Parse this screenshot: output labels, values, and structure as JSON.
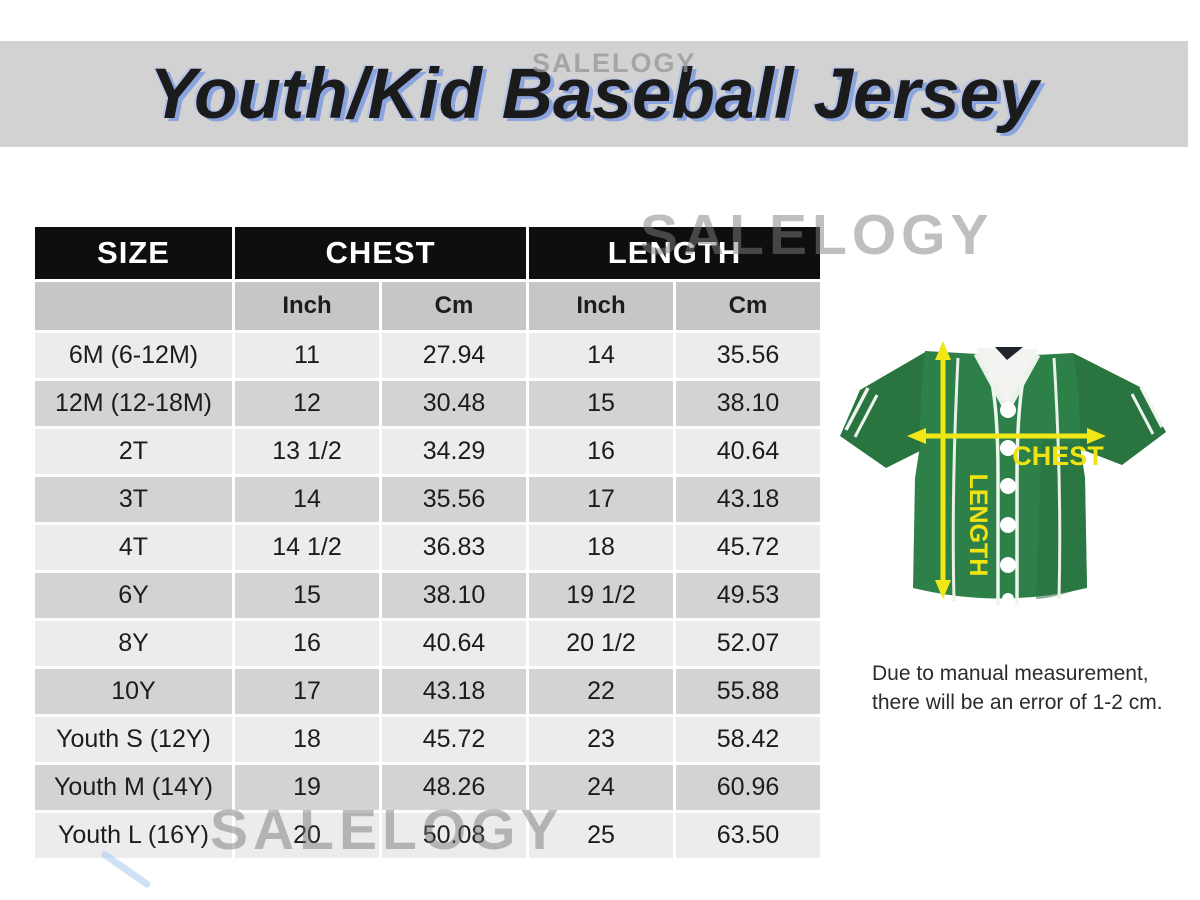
{
  "title": "Youth/Kid Baseball Jersey",
  "watermark_text": "SALELOGY",
  "table": {
    "headers": {
      "size": "SIZE",
      "chest": "CHEST",
      "length": "LENGTH"
    },
    "sub_headers": [
      "Inch",
      "Cm",
      "Inch",
      "Cm"
    ],
    "rows": [
      [
        "6M (6-12M)",
        "11",
        "27.94",
        "14",
        "35.56"
      ],
      [
        "12M (12-18M)",
        "12",
        "30.48",
        "15",
        "38.10"
      ],
      [
        "2T",
        "13 1/2",
        "34.29",
        "16",
        "40.64"
      ],
      [
        "3T",
        "14",
        "35.56",
        "17",
        "43.18"
      ],
      [
        "4T",
        "14 1/2",
        "36.83",
        "18",
        "45.72"
      ],
      [
        "6Y",
        "15",
        "38.10",
        "19 1/2",
        "49.53"
      ],
      [
        "8Y",
        "16",
        "40.64",
        "20 1/2",
        "52.07"
      ],
      [
        "10Y",
        "17",
        "43.18",
        "22",
        "55.88"
      ],
      [
        "Youth S (12Y)",
        "18",
        "45.72",
        "23",
        "58.42"
      ],
      [
        "Youth M (14Y)",
        "19",
        "48.26",
        "24",
        "60.96"
      ],
      [
        "Youth L (16Y)",
        "20",
        "50.08",
        "25",
        "63.50"
      ]
    ]
  },
  "diagram": {
    "chest_label": "CHEST",
    "length_label": "LENGTH"
  },
  "note": {
    "line1": "Due to manual measurement,",
    "line2": "there will be an error of 1-2 cm."
  },
  "colors": {
    "banner_gray": "#d2d2d2",
    "title_shadow_blue": "#8ba4de",
    "header_black": "#0e0e0e",
    "row_light": "#ececec",
    "row_dark": "#d3d3d3",
    "jersey_green": "#2e8049",
    "arrow_yellow": "#f2e716"
  },
  "chart_data": {
    "type": "table",
    "title": "Youth/Kid Baseball Jersey",
    "columns": [
      "SIZE",
      "CHEST Inch",
      "CHEST Cm",
      "LENGTH Inch",
      "LENGTH Cm"
    ],
    "rows": [
      [
        "6M (6-12M)",
        11,
        27.94,
        14,
        35.56
      ],
      [
        "12M (12-18M)",
        12,
        30.48,
        15,
        38.1
      ],
      [
        "2T",
        13.5,
        34.29,
        16,
        40.64
      ],
      [
        "3T",
        14,
        35.56,
        17,
        43.18
      ],
      [
        "4T",
        14.5,
        36.83,
        18,
        45.72
      ],
      [
        "6Y",
        15,
        38.1,
        19.5,
        49.53
      ],
      [
        "8Y",
        16,
        40.64,
        20.5,
        52.07
      ],
      [
        "10Y",
        17,
        43.18,
        22,
        55.88
      ],
      [
        "Youth S (12Y)",
        18,
        45.72,
        23,
        58.42
      ],
      [
        "Youth M (14Y)",
        19,
        48.26,
        24,
        60.96
      ],
      [
        "Youth L (16Y)",
        20,
        50.08,
        25,
        63.5
      ]
    ],
    "note": "Due to manual measurement, there will be an error of 1-2 cm."
  }
}
